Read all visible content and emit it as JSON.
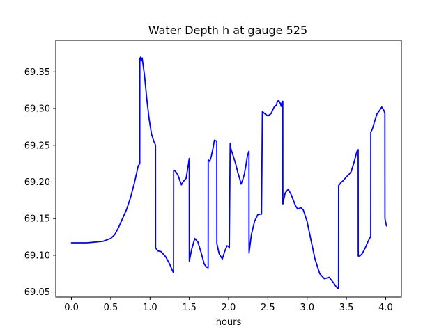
{
  "chart_data": {
    "type": "line",
    "title": "Water Depth h at gauge 525",
    "xlabel": "hours",
    "ylabel": "",
    "xlim": [
      -0.2,
      4.2
    ],
    "ylim": [
      69.043,
      69.393
    ],
    "grid": false,
    "xticks": [
      0.0,
      0.5,
      1.0,
      1.5,
      2.0,
      2.5,
      3.0,
      3.5,
      4.0
    ],
    "xtick_labels": [
      "0.0",
      "0.5",
      "1.0",
      "1.5",
      "2.0",
      "2.5",
      "3.0",
      "3.5",
      "4.0"
    ],
    "yticks": [
      69.05,
      69.1,
      69.15,
      69.2,
      69.25,
      69.3,
      69.35
    ],
    "ytick_labels": [
      "69.05",
      "69.10",
      "69.15",
      "69.20",
      "69.25",
      "69.30",
      "69.35"
    ],
    "series": [
      {
        "color": "#0000ff",
        "x": [
          0.0,
          0.2,
          0.4,
          0.5,
          0.55,
          0.6,
          0.65,
          0.7,
          0.75,
          0.8,
          0.85,
          0.87,
          0.871,
          0.88,
          0.89,
          0.9,
          0.93,
          0.96,
          0.99,
          1.02,
          1.05,
          1.06,
          1.07,
          1.071,
          1.1,
          1.14,
          1.2,
          1.25,
          1.29,
          1.3,
          1.301,
          1.32,
          1.34,
          1.36,
          1.38,
          1.4,
          1.42,
          1.46,
          1.49,
          1.5,
          1.501,
          1.53,
          1.57,
          1.61,
          1.65,
          1.69,
          1.72,
          1.74,
          1.741,
          1.76,
          1.78,
          1.8,
          1.82,
          1.84,
          1.85,
          1.851,
          1.88,
          1.92,
          1.95,
          1.98,
          2.0,
          2.01,
          2.02,
          2.021,
          2.03,
          2.06,
          2.09,
          2.12,
          2.14,
          2.16,
          2.18,
          2.2,
          2.22,
          2.24,
          2.26,
          2.261,
          2.29,
          2.33,
          2.37,
          2.4,
          2.42,
          2.43,
          2.431,
          2.46,
          2.5,
          2.54,
          2.58,
          2.61,
          2.62,
          2.64,
          2.66,
          2.67,
          2.68,
          2.69,
          2.691,
          2.72,
          2.76,
          2.8,
          2.85,
          2.88,
          2.92,
          2.95,
          3.0,
          3.05,
          3.1,
          3.16,
          3.22,
          3.28,
          3.34,
          3.37,
          3.39,
          3.4,
          3.401,
          3.43,
          3.46,
          3.5,
          3.53,
          3.56,
          3.6,
          3.63,
          3.64,
          3.65,
          3.651,
          3.67,
          3.7,
          3.74,
          3.78,
          3.81,
          3.811,
          3.83,
          3.86,
          3.89,
          3.92,
          3.95,
          3.98,
          3.99,
          3.991,
          4.01
        ],
        "y": [
          69.117,
          69.117,
          69.119,
          69.123,
          69.128,
          69.138,
          69.15,
          69.162,
          69.178,
          69.198,
          69.222,
          69.225,
          69.368,
          69.37,
          69.365,
          69.369,
          69.345,
          69.312,
          69.285,
          69.265,
          69.255,
          69.253,
          69.25,
          69.11,
          69.106,
          69.105,
          69.098,
          69.088,
          69.078,
          69.076,
          69.216,
          69.215,
          69.212,
          69.208,
          69.202,
          69.196,
          69.2,
          69.205,
          69.225,
          69.232,
          69.092,
          69.108,
          69.123,
          69.118,
          69.104,
          69.088,
          69.084,
          69.083,
          69.23,
          69.228,
          69.235,
          69.245,
          69.257,
          69.256,
          69.255,
          69.116,
          69.102,
          69.095,
          69.105,
          69.113,
          69.112,
          69.11,
          69.25,
          69.253,
          69.245,
          69.235,
          69.225,
          69.212,
          69.205,
          69.197,
          69.203,
          69.21,
          69.222,
          69.236,
          69.242,
          69.103,
          69.128,
          69.146,
          69.155,
          69.156,
          69.156,
          69.295,
          69.296,
          69.293,
          69.29,
          69.293,
          69.302,
          69.305,
          69.31,
          69.311,
          69.307,
          69.303,
          69.309,
          69.31,
          69.17,
          69.185,
          69.19,
          69.182,
          69.168,
          69.163,
          69.165,
          69.162,
          69.146,
          69.12,
          69.095,
          69.075,
          69.068,
          69.07,
          69.062,
          69.057,
          69.055,
          69.055,
          69.195,
          69.199,
          69.202,
          69.207,
          69.21,
          69.214,
          69.228,
          69.24,
          69.243,
          69.244,
          69.099,
          69.099,
          69.102,
          69.11,
          69.12,
          69.126,
          69.268,
          69.272,
          69.283,
          69.293,
          69.297,
          69.302,
          69.297,
          69.293,
          69.15,
          69.14
        ]
      }
    ]
  }
}
